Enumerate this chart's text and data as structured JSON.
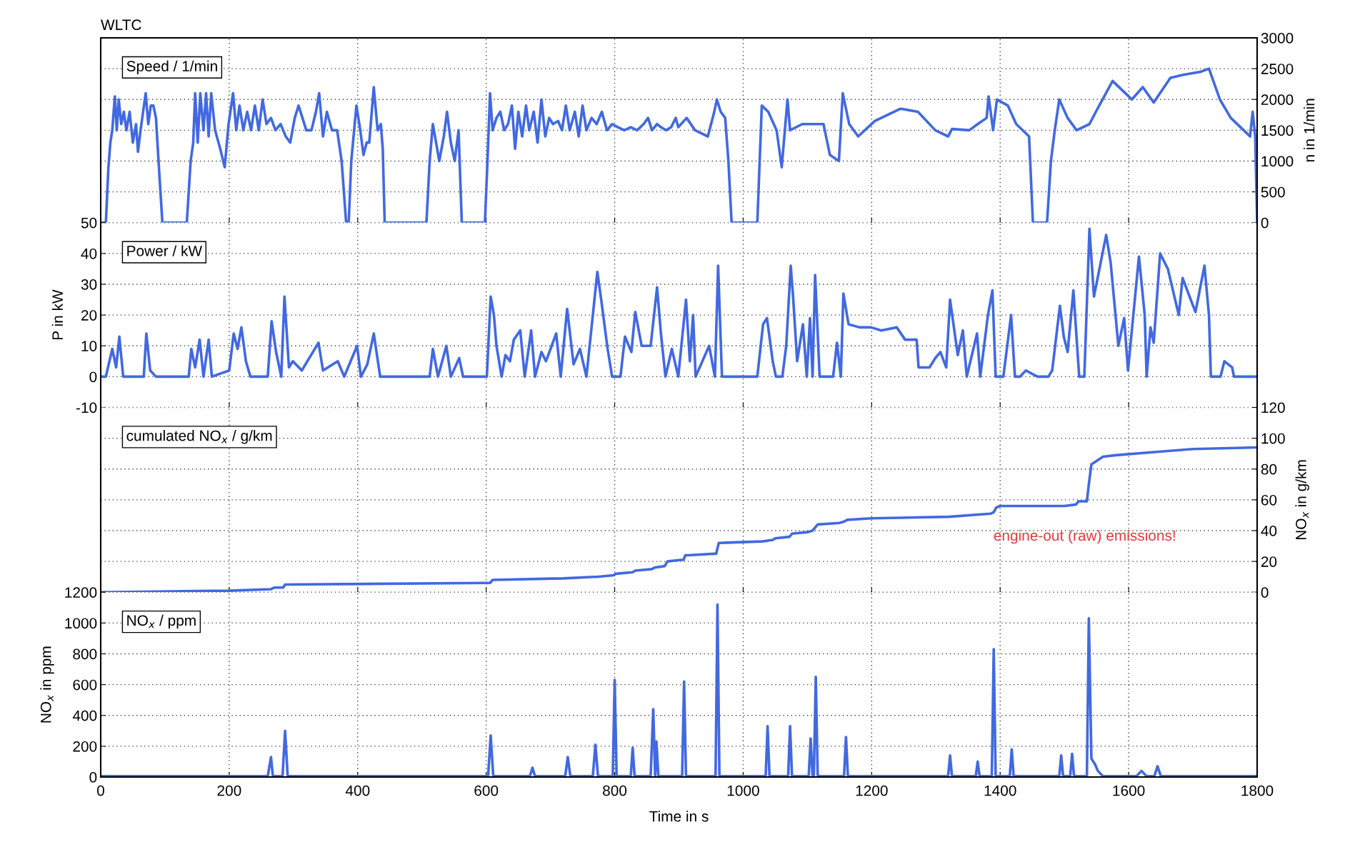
{
  "chart_data": [
    {
      "type": "line",
      "title": "WLTC",
      "y2label": "n in 1/min",
      "annotations": [
        "Speed / 1/min"
      ],
      "xlim": [
        0,
        1800
      ],
      "xticks": [
        0,
        200,
        400,
        600,
        800,
        1000,
        1200,
        1400,
        1600,
        1800
      ],
      "y2lim": [
        0,
        3000
      ],
      "y2ticks": [
        0,
        500,
        1000,
        1500,
        2000,
        2500,
        3000
      ],
      "grid": true,
      "tick_labels": "y",
      "series": [
        {
          "color": "#4169e1",
          "axis": "y2",
          "x": [
            0,
            8,
            12,
            15,
            18,
            22,
            25,
            28,
            32,
            36,
            40,
            45,
            50,
            55,
            58,
            62,
            66,
            70,
            74,
            78,
            82,
            86,
            90,
            96,
            134,
            140,
            144,
            147,
            151,
            155,
            160,
            164,
            168,
            172,
            178,
            186,
            193,
            199,
            206,
            211,
            216,
            222,
            228,
            234,
            240,
            246,
            252,
            258,
            265,
            272,
            280,
            288,
            295,
            302,
            308,
            314,
            320,
            328,
            335,
            340,
            346,
            352,
            360,
            368,
            375,
            382,
            386,
            390,
            398,
            404,
            409,
            414,
            418,
            425,
            431,
            436,
            439,
            442,
            507,
            512,
            517,
            522,
            527,
            534,
            539,
            545,
            551,
            557,
            562,
            598,
            602,
            606,
            610,
            616,
            622,
            628,
            634,
            640,
            645,
            650,
            656,
            662,
            667,
            674,
            680,
            686,
            692,
            698,
            704,
            712,
            718,
            724,
            730,
            738,
            744,
            750,
            756,
            764,
            772,
            780,
            788,
            796,
            805,
            815,
            825,
            835,
            845,
            852,
            858,
            866,
            872,
            880,
            888,
            895,
            899,
            912,
            925,
            945,
            955,
            959,
            965,
            972,
            977,
            982,
            1022,
            1029,
            1039,
            1052,
            1060,
            1069,
            1073,
            1092,
            1112,
            1125,
            1135,
            1149,
            1155,
            1165,
            1179,
            1205,
            1245,
            1272,
            1299,
            1319,
            1325,
            1352,
            1365,
            1379,
            1382,
            1389,
            1395,
            1412,
            1425,
            1445,
            1451,
            1473,
            1479,
            1485,
            1492,
            1505,
            1519,
            1539,
            1549,
            1575,
            1595,
            1605,
            1622,
            1639,
            1665,
            1685,
            1712,
            1725,
            1742,
            1759,
            1779,
            1789,
            1793,
            1797,
            1800
          ],
          "values": [
            0,
            0,
            900,
            1300,
            1500,
            2050,
            1500,
            2000,
            1600,
            1800,
            1500,
            1800,
            1300,
            1600,
            1150,
            1500,
            1800,
            2100,
            1600,
            1900,
            1900,
            1700,
            1000,
            0,
            0,
            1000,
            1300,
            2100,
            1300,
            2100,
            1500,
            2100,
            1400,
            2100,
            1500,
            1200,
            900,
            1600,
            2100,
            1500,
            1900,
            1500,
            1800,
            1500,
            1900,
            1500,
            2000,
            1600,
            1700,
            1500,
            1600,
            1400,
            1300,
            1700,
            1900,
            1700,
            1500,
            1500,
            1800,
            2100,
            1400,
            1800,
            1500,
            1500,
            1000,
            0,
            0,
            1000,
            1900,
            1500,
            1100,
            1300,
            1300,
            2200,
            1500,
            1600,
            1200,
            0,
            0,
            1000,
            1600,
            1300,
            1000,
            1400,
            1800,
            1300,
            1000,
            1500,
            0,
            0,
            1000,
            2100,
            1500,
            1700,
            1800,
            1500,
            1600,
            1900,
            1200,
            1800,
            1400,
            1900,
            1500,
            1800,
            1300,
            2000,
            1400,
            1700,
            1600,
            1650,
            1500,
            1900,
            1500,
            1800,
            1400,
            1900,
            1500,
            1700,
            1600,
            1800,
            1500,
            1600,
            1550,
            1500,
            1550,
            1500,
            1600,
            1700,
            1500,
            1600,
            1550,
            1500,
            1550,
            1700,
            1550,
            1700,
            1500,
            1400,
            1800,
            2000,
            1800,
            1700,
            1000,
            0,
            0,
            1900,
            1800,
            1500,
            900,
            2000,
            1500,
            1600,
            1600,
            1600,
            1100,
            1000,
            2100,
            1600,
            1400,
            1650,
            1850,
            1800,
            1500,
            1400,
            1520,
            1500,
            1600,
            1700,
            2050,
            1500,
            2000,
            1900,
            1600,
            1400,
            0,
            0,
            1000,
            1500,
            2000,
            1700,
            1500,
            1600,
            1800,
            2300,
            2100,
            2000,
            2200,
            1950,
            2350,
            2400,
            2450,
            2500,
            2000,
            1700,
            1500,
            1400,
            1800,
            1400,
            0
          ]
        }
      ]
    },
    {
      "type": "line",
      "ylabel": "P in kW",
      "annotations": [
        "Power / kW"
      ],
      "xlim": [
        0,
        1800
      ],
      "xticks": [
        0,
        200,
        400,
        600,
        800,
        1000,
        1200,
        1400,
        1600,
        1800
      ],
      "ylim": [
        -10,
        50
      ],
      "yticks": [
        -10,
        0,
        10,
        20,
        30,
        40,
        50
      ],
      "grid": true,
      "tick_labels": "y",
      "series": [
        {
          "color": "#4169e1",
          "x": [
            0,
            8,
            18,
            24,
            29,
            35,
            67,
            71,
            77,
            86,
            137,
            141,
            147,
            154,
            160,
            168,
            173,
            200,
            207,
            213,
            219,
            226,
            233,
            260,
            266,
            273,
            281,
            286,
            293,
            299,
            313,
            339,
            346,
            369,
            379,
            399,
            405,
            415,
            425,
            435,
            512,
            517,
            525,
            538,
            545,
            558,
            564,
            601,
            607,
            612,
            616,
            624,
            630,
            637,
            643,
            653,
            660,
            670,
            676,
            686,
            693,
            709,
            716,
            726,
            736,
            746,
            756,
            773,
            779,
            789,
            796,
            809,
            816,
            826,
            832,
            842,
            856,
            866,
            872,
            879,
            889,
            899,
            911,
            917,
            922,
            926,
            947,
            956,
            961,
            967,
            1022,
            1031,
            1037,
            1046,
            1051,
            1061,
            1067,
            1074,
            1078,
            1084,
            1093,
            1099,
            1104,
            1108,
            1112,
            1119,
            1140,
            1146,
            1152,
            1156,
            1164,
            1181,
            1199,
            1215,
            1239,
            1252,
            1270,
            1273,
            1290,
            1299,
            1307,
            1316,
            1322,
            1334,
            1342,
            1348,
            1364,
            1369,
            1381,
            1388,
            1393,
            1405,
            1417,
            1423,
            1431,
            1440,
            1458,
            1475,
            1481,
            1493,
            1499,
            1505,
            1514,
            1523,
            1531,
            1539,
            1546,
            1565,
            1572,
            1584,
            1593,
            1599,
            1616,
            1625,
            1628,
            1634,
            1639,
            1649,
            1661,
            1678,
            1684,
            1693,
            1704,
            1718,
            1725,
            1728,
            1743,
            1749,
            1761,
            1764,
            1800
          ],
          "values": [
            0,
            0,
            9,
            3,
            13,
            0,
            0,
            14,
            2,
            0,
            0,
            9,
            3,
            12,
            0,
            12,
            0,
            2,
            14,
            9,
            16,
            5,
            0,
            0,
            18,
            8,
            0,
            26,
            3,
            5,
            2,
            11,
            2,
            5,
            0,
            10,
            0,
            4,
            14,
            0,
            0,
            9,
            0,
            10,
            0,
            6,
            0,
            0,
            26,
            20,
            10,
            0,
            7,
            5,
            12,
            15,
            0,
            15,
            0,
            8,
            5,
            14,
            0,
            22,
            4,
            9,
            0,
            34,
            25,
            9,
            0,
            0,
            13,
            8,
            21,
            10,
            10,
            29,
            14,
            0,
            9,
            0,
            25,
            5,
            20,
            0,
            10,
            0,
            36,
            0,
            0,
            17,
            19,
            5,
            0,
            0,
            10,
            36,
            25,
            5,
            17,
            0,
            19,
            0,
            33,
            0,
            0,
            11,
            0,
            27,
            17,
            16,
            16,
            15,
            16,
            12,
            12,
            3,
            3,
            6,
            8,
            3,
            25,
            7,
            15,
            0,
            14,
            0,
            20,
            28,
            0,
            0,
            20,
            0,
            0,
            2,
            0,
            0,
            2,
            23,
            13,
            8,
            28,
            0,
            0,
            48,
            26,
            46,
            37,
            10,
            19,
            2,
            39,
            20,
            0,
            16,
            11,
            40,
            35,
            20,
            32,
            27,
            21,
            36,
            20,
            0,
            0,
            5,
            3,
            0,
            0
          ]
        }
      ]
    },
    {
      "type": "line",
      "y2label": "NO$_{x}$ in g/km",
      "annotations": [
        "cumulated NO$_{x}$ / g/km",
        "engine-out (raw) emissions!"
      ],
      "xlim": [
        0,
        1800
      ],
      "xticks": [
        0,
        200,
        400,
        600,
        800,
        1000,
        1200,
        1400,
        1600,
        1800
      ],
      "y2lim": [
        0,
        120
      ],
      "y2ticks": [
        0,
        20,
        40,
        60,
        80,
        100,
        120
      ],
      "grid": true,
      "tick_labels": "y",
      "series": [
        {
          "color": "#4169e1",
          "axis": "y2",
          "x": [
            0,
            200,
            265,
            270,
            284,
            287,
            600,
            606,
            610,
            720,
            768,
            772,
            798,
            802,
            828,
            832,
            858,
            862,
            878,
            882,
            903,
            907,
            910,
            914,
            955,
            958,
            962,
            1030,
            1046,
            1050,
            1072,
            1076,
            1100,
            1108,
            1112,
            1116,
            1150,
            1158,
            1162,
            1200,
            1320,
            1385,
            1390,
            1394,
            1400,
            1500,
            1518,
            1522,
            1535,
            1538,
            1542,
            1560,
            1580,
            1640,
            1700,
            1800
          ],
          "values": [
            0,
            1,
            2,
            3,
            3,
            5,
            6,
            6,
            8,
            9,
            10,
            10,
            11,
            12,
            13,
            14,
            15,
            16,
            17,
            20,
            21,
            21,
            24,
            24,
            25,
            25,
            32,
            33,
            34,
            35,
            36,
            38,
            39,
            40,
            42,
            44,
            45,
            46,
            47,
            48,
            49,
            51,
            52,
            55,
            56,
            56,
            57,
            59,
            59,
            70,
            83,
            88,
            89,
            91,
            93,
            94
          ]
        }
      ]
    },
    {
      "type": "line",
      "ylabel": "NO$_{x}$ in ppm",
      "xlabel": "Time in s",
      "annotations": [
        "NO$_{x}$ / ppm"
      ],
      "xlim": [
        0,
        1800
      ],
      "xticks": [
        0,
        200,
        400,
        600,
        800,
        1000,
        1200,
        1400,
        1600,
        1800
      ],
      "ylim": [
        0,
        1200
      ],
      "yticks": [
        0,
        200,
        400,
        600,
        800,
        1000,
        1200
      ],
      "grid": true,
      "series": [
        {
          "color": "#4169e1",
          "x": [
            0,
            260,
            265,
            268,
            283,
            287,
            291,
            603,
            607,
            611,
            668,
            672,
            676,
            723,
            727,
            731,
            766,
            770,
            774,
            797,
            800,
            803,
            825,
            828,
            831,
            856,
            860,
            863,
            865,
            868,
            905,
            908,
            911,
            957,
            960,
            963,
            1035,
            1038,
            1041,
            1070,
            1073,
            1076,
            1102,
            1105,
            1108,
            1110,
            1113,
            1116,
            1157,
            1160,
            1163,
            1319,
            1322,
            1325,
            1362,
            1365,
            1368,
            1387,
            1390,
            1393,
            1415,
            1418,
            1421,
            1492,
            1495,
            1498,
            1509,
            1512,
            1515,
            1535,
            1538,
            1542,
            1548,
            1552,
            1560,
            1612,
            1620,
            1628,
            1640,
            1645,
            1650,
            1800
          ],
          "values": [
            5,
            5,
            130,
            5,
            5,
            300,
            5,
            5,
            270,
            5,
            5,
            60,
            5,
            5,
            130,
            5,
            5,
            210,
            5,
            5,
            630,
            5,
            5,
            190,
            5,
            5,
            440,
            5,
            230,
            5,
            5,
            620,
            5,
            5,
            1120,
            5,
            5,
            330,
            5,
            5,
            330,
            5,
            5,
            250,
            5,
            5,
            650,
            5,
            5,
            260,
            5,
            5,
            140,
            5,
            5,
            100,
            5,
            5,
            830,
            5,
            5,
            180,
            5,
            5,
            140,
            5,
            5,
            150,
            5,
            5,
            1030,
            120,
            80,
            40,
            5,
            5,
            40,
            5,
            5,
            70,
            5,
            5
          ]
        }
      ]
    }
  ]
}
